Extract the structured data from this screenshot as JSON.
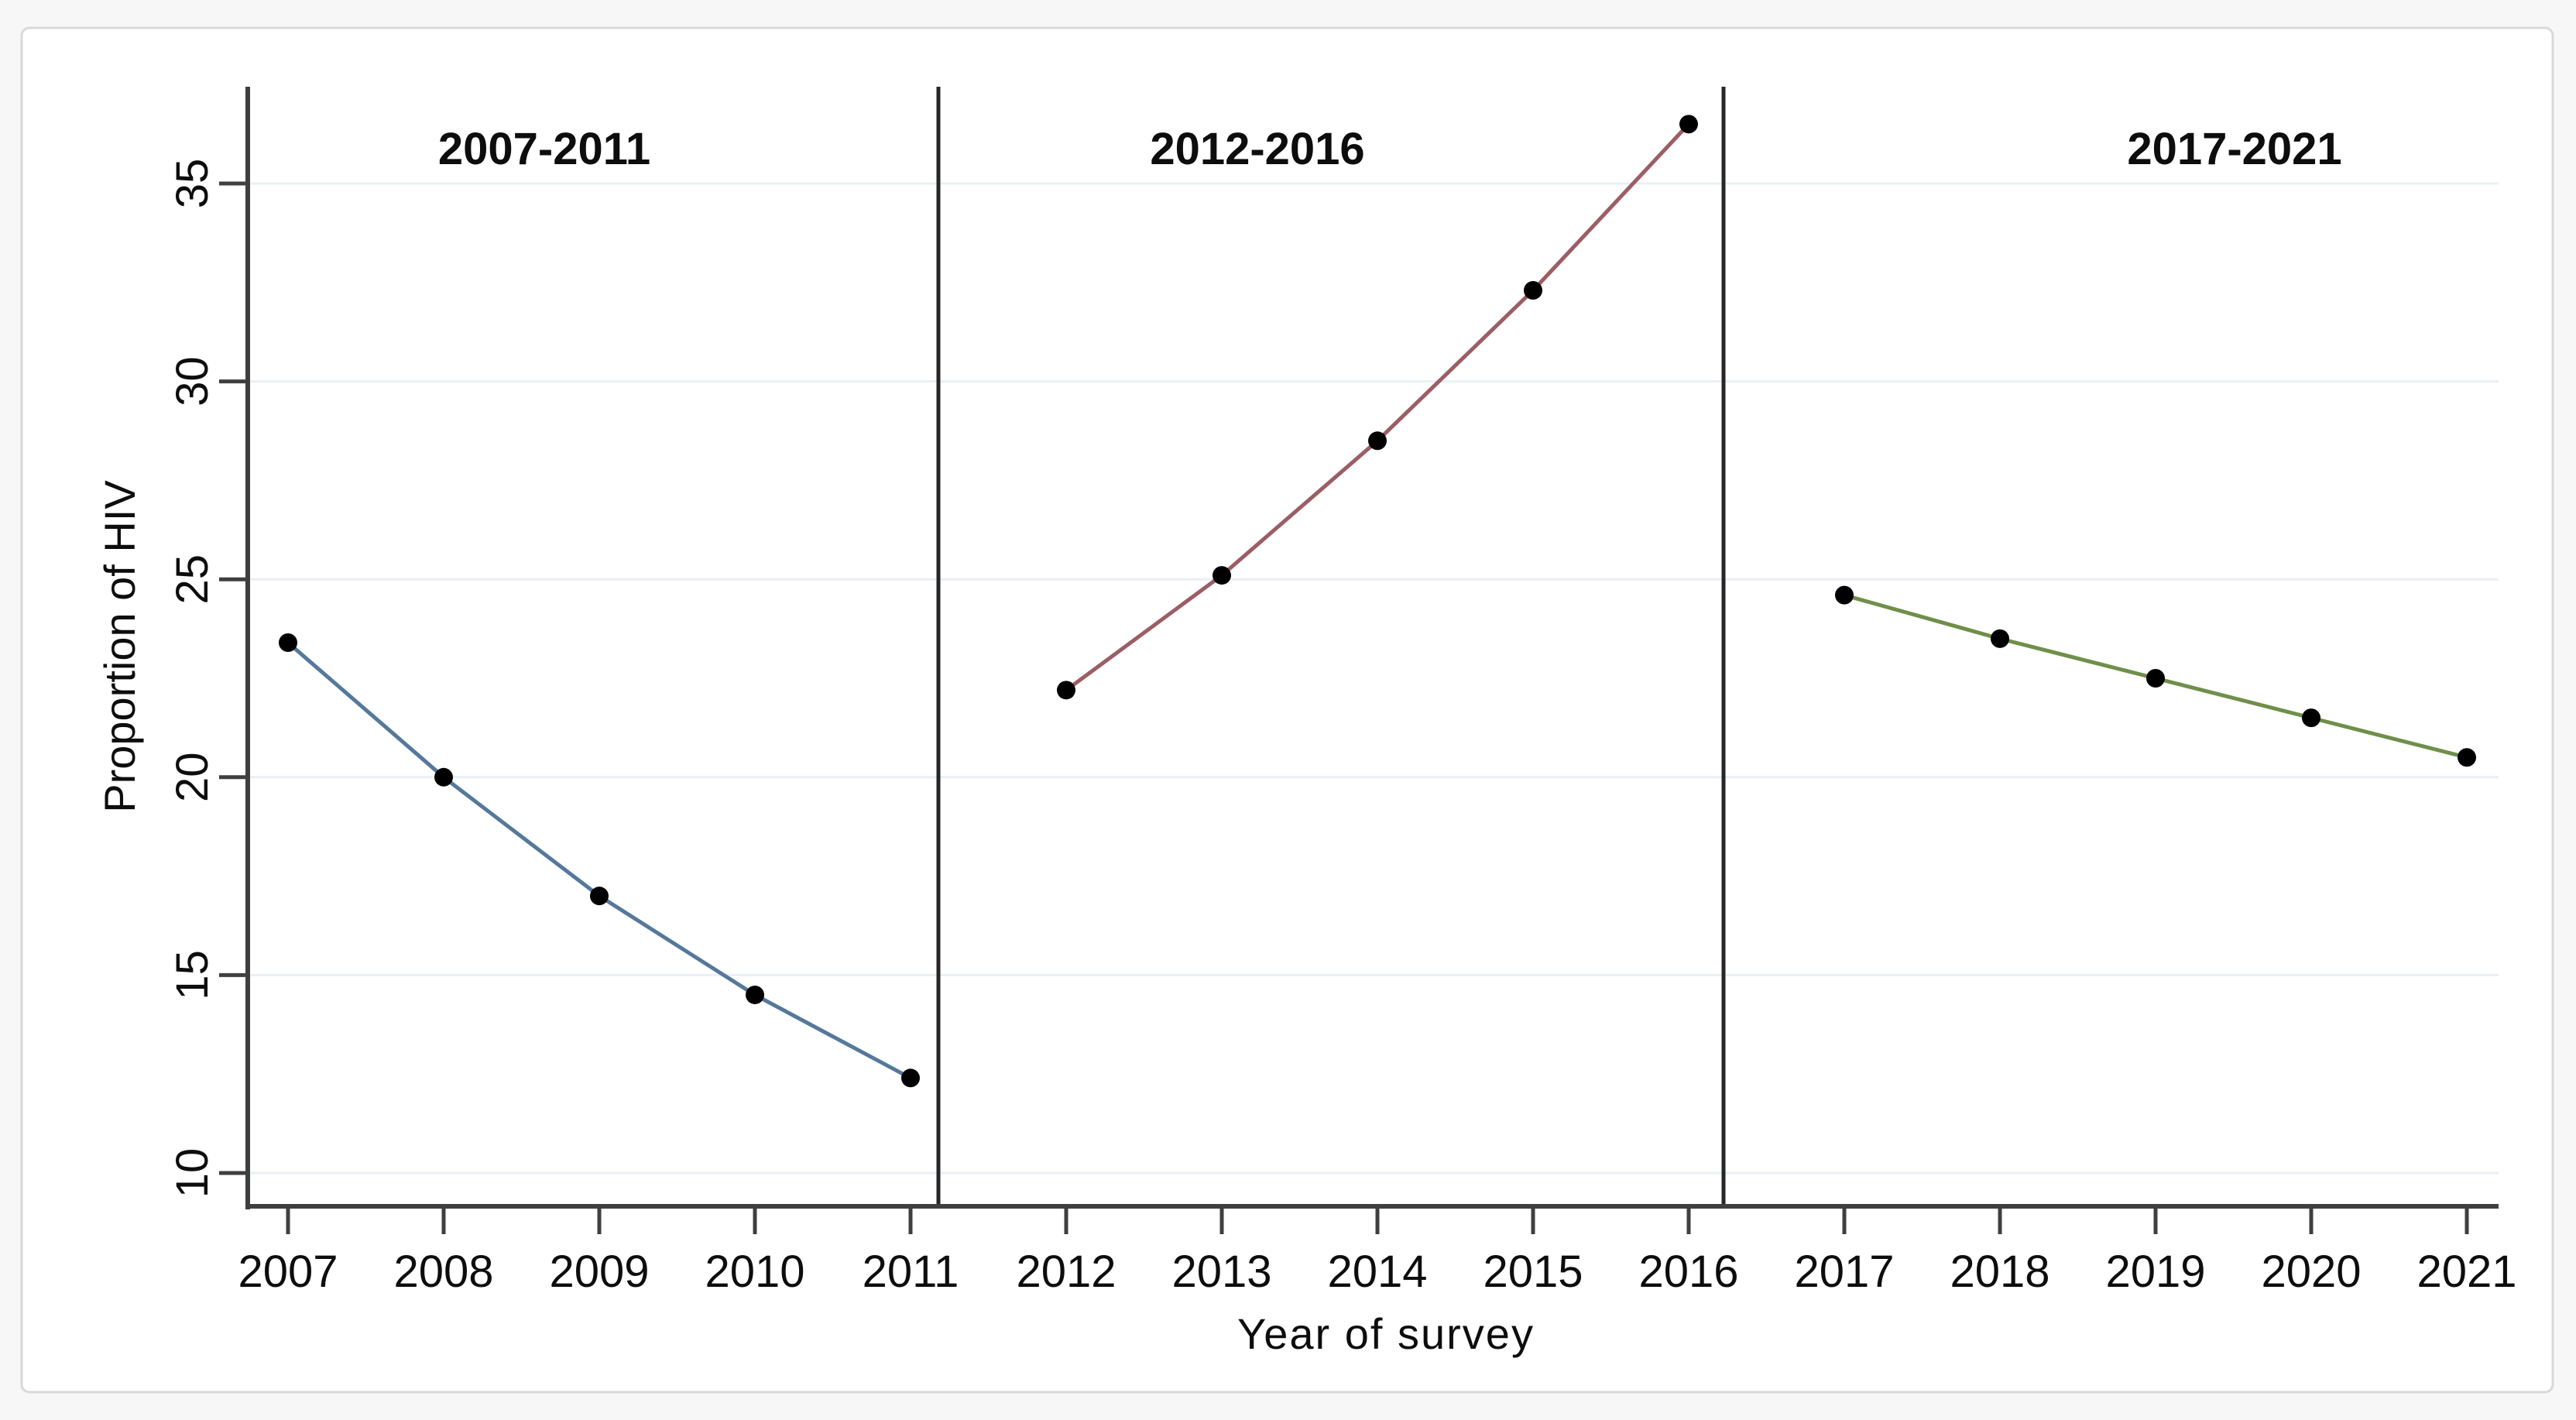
{
  "page": {
    "background_color": "#f7f7f7",
    "panel_background_color": "#ffffff",
    "panel_border_color": "#d9d9d9"
  },
  "chart_data": {
    "type": "line",
    "title": "",
    "xlabel": "Year of survey",
    "ylabel": "Proportion of HIV",
    "grid": true,
    "legend": "none",
    "yticks": [
      10,
      15,
      20,
      25,
      30,
      35
    ],
    "ylim": [
      9.4,
      36.9
    ],
    "x_years": [
      2007,
      2008,
      2009,
      2010,
      2011,
      2012,
      2013,
      2014,
      2015,
      2016,
      2017,
      2018,
      2019,
      2020,
      2021
    ],
    "gridline_color": "#e9f0f4",
    "axis_color": "#3f3f3f",
    "divider_color": "#262626",
    "text_color": "#0d0d0d",
    "point_color": "#000000",
    "dividers_x": [
      1212,
      2226
    ],
    "panels": [
      {
        "label": "2007-2011",
        "title_center_x": 703,
        "color": "#55789b",
        "years": [
          2007,
          2008,
          2009,
          2010,
          2011
        ],
        "values": [
          23.4,
          20.0,
          17.0,
          14.5,
          12.4
        ]
      },
      {
        "label": "2012-2016",
        "title_center_x": 1624,
        "color": "#9c5d64",
        "years": [
          2012,
          2013,
          2014,
          2015,
          2016
        ],
        "values": [
          22.2,
          25.1,
          28.5,
          32.3,
          36.5
        ]
      },
      {
        "label": "2017-2021",
        "title_center_x": 2886,
        "color": "#6f8f4a",
        "years": [
          2017,
          2018,
          2019,
          2020,
          2021
        ],
        "values": [
          24.6,
          23.5,
          22.5,
          21.5,
          20.5
        ]
      }
    ]
  }
}
